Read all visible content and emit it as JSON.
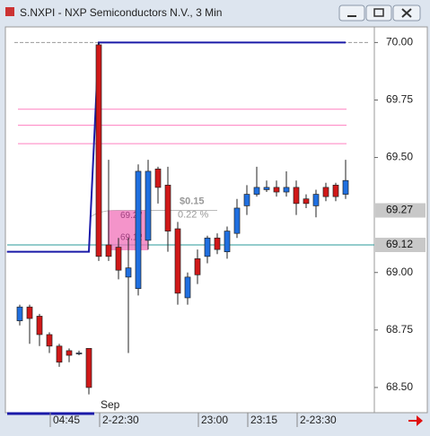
{
  "window_title": "S.NXPI - NXP Semiconductors N.V., 3 Min",
  "chart_data": {
    "type": "candlestick",
    "categories": [
      null,
      null,
      null,
      "04:45",
      null,
      null,
      null,
      null,
      "2-22:30",
      null,
      null,
      null,
      null,
      null,
      null,
      null,
      null,
      null,
      "23:00",
      null,
      null,
      null,
      null,
      "23:15",
      null,
      null,
      null,
      null,
      "2-23:30",
      null,
      null,
      null,
      null,
      null
    ],
    "month_label": "Sep",
    "open": [
      68.79,
      68.85,
      68.81,
      68.73,
      68.68,
      68.66,
      68.65,
      68.67,
      69.99,
      69.12,
      69.11,
      68.98,
      68.93,
      69.14,
      69.45,
      69.38,
      69.19,
      68.89,
      69.06,
      69.07,
      69.15,
      69.09,
      69.17,
      69.29,
      69.34,
      69.36,
      69.37,
      69.35,
      69.37,
      69.32,
      69.29,
      69.37,
      69.38,
      69.34
    ],
    "high": [
      68.86,
      68.86,
      68.82,
      68.74,
      68.69,
      68.67,
      68.66,
      68.67,
      70.0,
      69.49,
      69.15,
      69.15,
      69.47,
      69.49,
      69.46,
      69.46,
      69.22,
      69.0,
      69.1,
      69.16,
      69.17,
      69.2,
      69.32,
      69.38,
      69.46,
      69.4,
      69.4,
      69.44,
      69.4,
      69.34,
      69.36,
      69.39,
      69.39,
      69.49
    ],
    "low": [
      68.77,
      68.69,
      68.68,
      68.65,
      68.59,
      68.61,
      68.64,
      68.47,
      69.05,
      69.05,
      68.97,
      68.65,
      68.9,
      69.1,
      69.3,
      69.09,
      68.86,
      68.86,
      68.95,
      69.04,
      69.08,
      69.06,
      69.15,
      69.25,
      69.33,
      69.35,
      69.33,
      69.33,
      69.25,
      69.28,
      69.24,
      69.31,
      69.31,
      69.32
    ],
    "close": [
      68.85,
      68.8,
      68.73,
      68.68,
      68.61,
      68.64,
      68.65,
      68.5,
      69.07,
      69.07,
      69.01,
      69.02,
      69.44,
      69.44,
      69.37,
      69.18,
      68.91,
      68.98,
      68.99,
      69.15,
      69.1,
      69.18,
      69.28,
      69.34,
      69.37,
      69.37,
      69.35,
      69.37,
      69.3,
      69.3,
      69.34,
      69.33,
      69.33,
      69.4
    ],
    "up_color": "#1f6fe0",
    "down_color": "#d01818",
    "range_line": {
      "color": "#1a1aa8",
      "x": [
        -1.3,
        7,
        8,
        33
      ],
      "values": [
        69.09,
        69.09,
        70.0,
        70.0
      ]
    },
    "reference_line": 70.0,
    "levels": [
      69.71,
      69.64,
      69.56
    ],
    "price_labels": [
      69.27,
      69.12
    ],
    "measure": {
      "change": "$0.15",
      "pct": "0.22 %"
    },
    "ylim": [
      68.41,
      70.06
    ],
    "yticks": [
      {
        "value": 70.0,
        "label": "70.00"
      },
      69.75,
      {
        "value": 69.5,
        "label": "69.50"
      },
      {
        "value": 69.0,
        "label": "69.00"
      },
      68.75,
      {
        "value": 68.5,
        "label": "68.50"
      }
    ]
  }
}
